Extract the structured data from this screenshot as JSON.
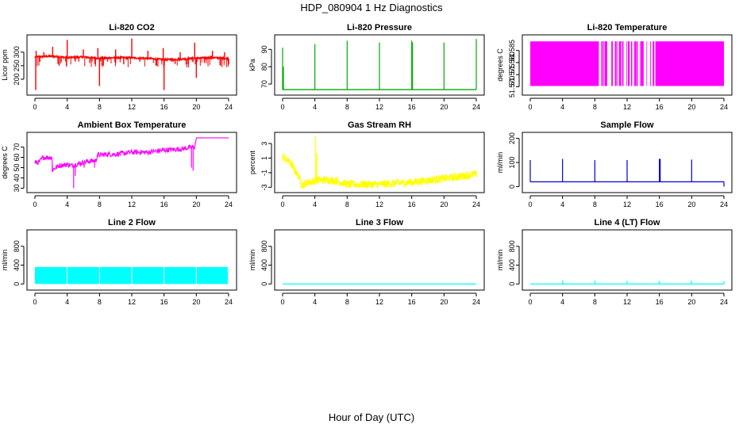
{
  "chart_data": {
    "type": "line",
    "title": "HDP_080904  1 Hz Diagnostics",
    "xlabel": "Hour of Day (UTC)",
    "panels": [
      {
        "key": "co2",
        "title": "Li-820 CO2",
        "ylabel": "Licor ppm",
        "color": "#ff0000",
        "xlim": [
          0,
          24
        ],
        "ylim": [
          150,
          355
        ],
        "x_ticks": [
          "0",
          "4",
          "8",
          "12",
          "16",
          "20",
          "24"
        ],
        "y_ticks": [
          "200",
          "250",
          "300"
        ],
        "style": "co2",
        "baseline_series": [
          {
            "x": 0,
            "y": 282
          },
          {
            "x": 2,
            "y": 285
          },
          {
            "x": 4,
            "y": 280
          },
          {
            "x": 6,
            "y": 282
          },
          {
            "x": 8,
            "y": 277
          },
          {
            "x": 10,
            "y": 280
          },
          {
            "x": 12,
            "y": 279
          },
          {
            "x": 14,
            "y": 277
          },
          {
            "x": 16,
            "y": 272
          },
          {
            "x": 18,
            "y": 274
          },
          {
            "x": 20,
            "y": 278
          },
          {
            "x": 22,
            "y": 280
          },
          {
            "x": 24,
            "y": 276
          }
        ],
        "spike_series": [
          {
            "x": 0.1,
            "y": 160
          },
          {
            "x": 0.15,
            "y": 305
          },
          {
            "x": 1.1,
            "y": 300
          },
          {
            "x": 2.2,
            "y": 320
          },
          {
            "x": 3.0,
            "y": 250
          },
          {
            "x": 3.9,
            "y": 250
          },
          {
            "x": 4.0,
            "y": 345
          },
          {
            "x": 5.0,
            "y": 265
          },
          {
            "x": 6.0,
            "y": 310
          },
          {
            "x": 6.8,
            "y": 260
          },
          {
            "x": 7.8,
            "y": 315
          },
          {
            "x": 8.0,
            "y": 175
          },
          {
            "x": 9.0,
            "y": 265
          },
          {
            "x": 10.0,
            "y": 310
          },
          {
            "x": 11.0,
            "y": 255
          },
          {
            "x": 12.0,
            "y": 350
          },
          {
            "x": 13.0,
            "y": 265
          },
          {
            "x": 14.0,
            "y": 305
          },
          {
            "x": 15.0,
            "y": 250
          },
          {
            "x": 15.9,
            "y": 315
          },
          {
            "x": 16.0,
            "y": 160
          },
          {
            "x": 17.0,
            "y": 265
          },
          {
            "x": 18.0,
            "y": 300
          },
          {
            "x": 19.0,
            "y": 255
          },
          {
            "x": 19.8,
            "y": 335
          },
          {
            "x": 20.0,
            "y": 205
          },
          {
            "x": 21.0,
            "y": 260
          },
          {
            "x": 22.0,
            "y": 305
          },
          {
            "x": 23.0,
            "y": 250
          },
          {
            "x": 23.5,
            "y": 300
          },
          {
            "x": 24.0,
            "y": 255
          }
        ]
      },
      {
        "key": "pressure",
        "title": "Li-820 Pressure",
        "ylabel": "kPa",
        "color": "#00aa00",
        "xlim": [
          0,
          24
        ],
        "ylim": [
          65,
          97
        ],
        "x_ticks": [
          "0",
          "4",
          "8",
          "12",
          "16",
          "20",
          "24"
        ],
        "y_ticks": [
          "70",
          "80",
          "90"
        ],
        "style": "spikes",
        "baseline": 66.8,
        "spike_series": [
          {
            "x": 0.0,
            "y": 91
          },
          {
            "x": 0.1,
            "y": 80
          },
          {
            "x": 4.0,
            "y": 93
          },
          {
            "x": 8.0,
            "y": 95
          },
          {
            "x": 12.0,
            "y": 94
          },
          {
            "x": 16.0,
            "y": 95
          },
          {
            "x": 16.1,
            "y": 94
          },
          {
            "x": 20.0,
            "y": 94
          },
          {
            "x": 24.0,
            "y": 96
          }
        ]
      },
      {
        "key": "temperature",
        "title": "Li-820 Temperature",
        "ylabel": "degrees C",
        "color": "#ff00ff",
        "xlim": [
          0,
          24
        ],
        "ylim": [
          51.5675,
          51.5905
        ],
        "x_ticks": [
          "0",
          "4",
          "8",
          "12",
          "16",
          "20",
          "24"
        ],
        "y_ticks": [
          "51.570",
          "51.575",
          "51.580",
          "51.585"
        ],
        "style": "bands",
        "range": [
          51.5703,
          51.5888
        ],
        "solid_bands": [
          [
            0,
            8.5
          ],
          [
            15.5,
            24
          ]
        ],
        "mixed_band": [
          8.5,
          15.5
        ]
      },
      {
        "key": "ambient",
        "title": "Ambient Box Temperature",
        "ylabel": "degrees C",
        "color": "#ff00ff",
        "xlim": [
          0,
          24
        ],
        "ylim": [
          28,
          82
        ],
        "x_ticks": [
          "0",
          "4",
          "8",
          "12",
          "16",
          "20",
          "24"
        ],
        "y_ticks": [
          "30",
          "40",
          "50",
          "60",
          "70"
        ],
        "style": "ambient",
        "series": [
          {
            "x": 0.0,
            "y": 55
          },
          {
            "x": 0.5,
            "y": 55
          },
          {
            "x": 1.0,
            "y": 60
          },
          {
            "x": 2.1,
            "y": 60
          },
          {
            "x": 2.2,
            "y": 48
          },
          {
            "x": 3.0,
            "y": 52
          },
          {
            "x": 4.0,
            "y": 53
          },
          {
            "x": 4.6,
            "y": 52
          },
          {
            "x": 5.5,
            "y": 54
          },
          {
            "x": 6.5,
            "y": 56
          },
          {
            "x": 7.6,
            "y": 57
          },
          {
            "x": 7.7,
            "y": 62
          },
          {
            "x": 9.0,
            "y": 63
          },
          {
            "x": 10.0,
            "y": 63
          },
          {
            "x": 12.0,
            "y": 65
          },
          {
            "x": 14.0,
            "y": 65
          },
          {
            "x": 16.0,
            "y": 67
          },
          {
            "x": 18.0,
            "y": 68
          },
          {
            "x": 19.5,
            "y": 70
          },
          {
            "x": 19.8,
            "y": 70
          },
          {
            "x": 20.0,
            "y": 79
          },
          {
            "x": 24.0,
            "y": 79
          }
        ],
        "dips": [
          {
            "x": 2.15,
            "y": 46
          },
          {
            "x": 3.3,
            "y": 50
          },
          {
            "x": 4.8,
            "y": 30
          },
          {
            "x": 5.0,
            "y": 42
          },
          {
            "x": 6.1,
            "y": 50
          },
          {
            "x": 7.4,
            "y": 50
          },
          {
            "x": 19.4,
            "y": 50
          },
          {
            "x": 19.6,
            "y": 47
          }
        ]
      },
      {
        "key": "rh",
        "title": "Gas Stream RH",
        "ylabel": "percent",
        "color": "#ffff00",
        "xlim": [
          0,
          24
        ],
        "ylim": [
          -3.4,
          4.2
        ],
        "x_ticks": [
          "0",
          "4",
          "8",
          "12",
          "16",
          "20",
          "24"
        ],
        "y_ticks": [
          "-3",
          "-1",
          "1",
          "3"
        ],
        "style": "rh",
        "series": [
          {
            "x": 0.0,
            "y": 1.2
          },
          {
            "x": 1.0,
            "y": 0.3
          },
          {
            "x": 2.0,
            "y": -1.5
          },
          {
            "x": 2.4,
            "y": -2.7
          },
          {
            "x": 3.5,
            "y": -2.2
          },
          {
            "x": 4.5,
            "y": -2.0
          },
          {
            "x": 6.0,
            "y": -2.0
          },
          {
            "x": 7.0,
            "y": -2.2
          },
          {
            "x": 8.0,
            "y": -2.6
          },
          {
            "x": 12.0,
            "y": -2.6
          },
          {
            "x": 16.0,
            "y": -2.3
          },
          {
            "x": 20.0,
            "y": -1.8
          },
          {
            "x": 24.0,
            "y": -1.2
          }
        ],
        "spike_series": [
          {
            "x": 4.1,
            "y": 4.0
          },
          {
            "x": 4.25,
            "y": 1.7
          }
        ]
      },
      {
        "key": "sample_flow",
        "title": "Sample Flow",
        "ylabel": "ml/min",
        "color": "#0000cc",
        "xlim": [
          0,
          24
        ],
        "ylim": [
          -15,
          215
        ],
        "x_ticks": [
          "0",
          "4",
          "8",
          "12",
          "16",
          "20",
          "24"
        ],
        "y_ticks": [
          "0",
          "100",
          "200"
        ],
        "style": "spikes",
        "baseline": 20,
        "spike_series": [
          {
            "x": 0.0,
            "y": 110
          },
          {
            "x": 4.0,
            "y": 115
          },
          {
            "x": 8.0,
            "y": 110
          },
          {
            "x": 12.0,
            "y": 110
          },
          {
            "x": 16.0,
            "y": 115
          },
          {
            "x": 16.1,
            "y": 115
          },
          {
            "x": 20.0,
            "y": 112
          },
          {
            "x": 24.0,
            "y": 0
          }
        ]
      },
      {
        "key": "line2",
        "title": "Line 2 Flow",
        "ylabel": "ml/min",
        "color": "#00ffff",
        "xlim": [
          0,
          24
        ],
        "ylim": [
          -80,
          1100
        ],
        "x_ticks": [
          "0",
          "4",
          "8",
          "12",
          "16",
          "20",
          "24"
        ],
        "y_ticks": [
          "0",
          "400",
          "800"
        ],
        "style": "block",
        "range": [
          0,
          360
        ],
        "gaps": [
          4,
          8,
          12,
          16,
          20
        ],
        "xmax": 23.9
      },
      {
        "key": "line3",
        "title": "Line 3 Flow",
        "ylabel": "ml/min",
        "color": "#00ffff",
        "xlim": [
          0,
          24
        ],
        "ylim": [
          -80,
          1100
        ],
        "x_ticks": [
          "0",
          "4",
          "8",
          "12",
          "16",
          "20",
          "24"
        ],
        "y_ticks": [
          "0",
          "400",
          "800"
        ],
        "style": "spikes",
        "baseline": 0,
        "spike_series": []
      },
      {
        "key": "line4",
        "title": "Line 4 (LT) Flow",
        "ylabel": "ml/min",
        "color": "#00ffff",
        "xlim": [
          0,
          24
        ],
        "ylim": [
          -80,
          1100
        ],
        "x_ticks": [
          "0",
          "4",
          "8",
          "12",
          "16",
          "20",
          "24"
        ],
        "y_ticks": [
          "0",
          "400",
          "800"
        ],
        "style": "spikes",
        "baseline": 0,
        "spike_series": [
          {
            "x": 4.0,
            "y": 75
          },
          {
            "x": 8.0,
            "y": 70
          },
          {
            "x": 12.0,
            "y": 70
          },
          {
            "x": 16.0,
            "y": 65
          },
          {
            "x": 20.0,
            "y": 70
          },
          {
            "x": 24.0,
            "y": 60
          }
        ]
      }
    ]
  }
}
